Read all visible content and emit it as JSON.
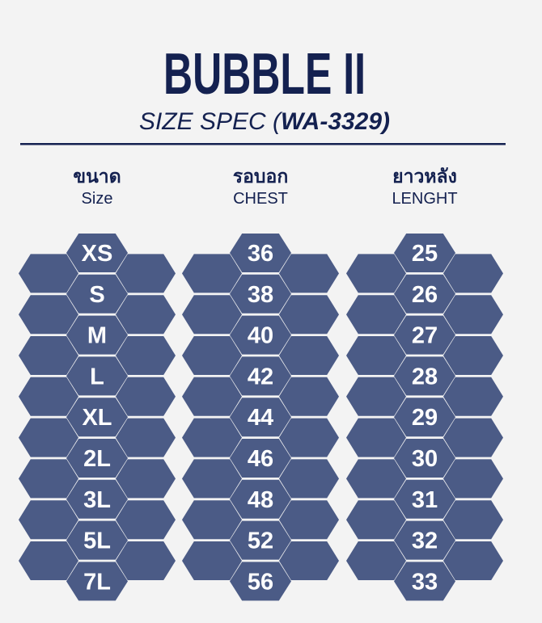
{
  "header": {
    "title": "BUBBLE II",
    "subtitle_prefix": "SIZE SPEC (",
    "subtitle_code": "WA-3329)",
    "subtitle": "SIZE SPEC (WA-3329)"
  },
  "colors": {
    "navy": "#142150",
    "hex_fill": "#4b5b86",
    "background": "#f3f3f3"
  },
  "columns": [
    {
      "label_th": "ขนาด",
      "label_en": "Size",
      "values": [
        "XS",
        "S",
        "M",
        "L",
        "XL",
        "2L",
        "3L",
        "5L",
        "7L"
      ]
    },
    {
      "label_th": "รอบอก",
      "label_en": "CHEST",
      "values": [
        "36",
        "38",
        "40",
        "42",
        "44",
        "46",
        "48",
        "52",
        "56"
      ]
    },
    {
      "label_th": "ยาวหลัง",
      "label_en": "LENGHT",
      "values": [
        "25",
        "26",
        "27",
        "28",
        "29",
        "30",
        "31",
        "32",
        "33"
      ]
    }
  ]
}
